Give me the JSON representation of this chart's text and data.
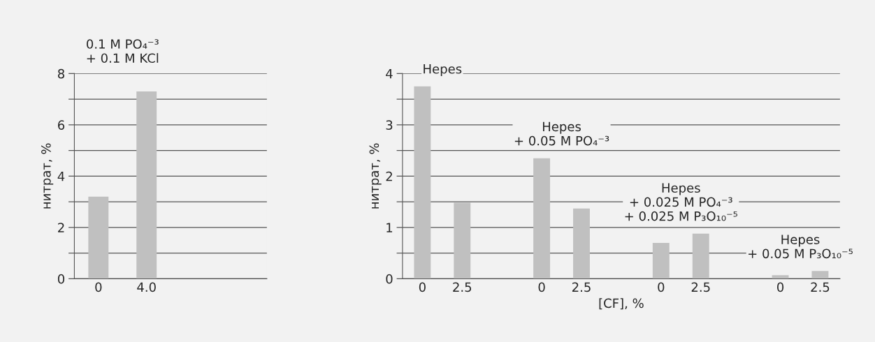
{
  "chart_data": [
    {
      "type": "bar",
      "ylabel": "нитрат, %",
      "categories": [
        "0",
        "4.0"
      ],
      "values": [
        3.2,
        7.3
      ],
      "color": "#c0c0c0",
      "ylim": [
        0,
        8
      ],
      "yticks": [
        0,
        {
          "value": 1,
          "label": null
        },
        2,
        {
          "value": 3,
          "label": null
        },
        4,
        {
          "value": 5,
          "label": null
        },
        6,
        {
          "value": 7,
          "label": null
        },
        8
      ],
      "grid": "y",
      "annotations": [
        "0.1 M PO₄⁻³\n+ 0.1 M KCl"
      ]
    },
    {
      "type": "bar",
      "ylabel": "нитрат, %",
      "xlabel": "[CF], %",
      "categories": [
        "0",
        "2.5",
        null,
        "0",
        "2.5",
        null,
        "0",
        "2.5",
        null,
        "0",
        "2.5"
      ],
      "values": [
        3.75,
        1.48,
        null,
        2.35,
        1.37,
        null,
        0.7,
        0.88,
        null,
        0.07,
        0.15
      ],
      "color": "#c0c0c0",
      "ylim": [
        0,
        4
      ],
      "yticks": [
        0,
        {
          "value": 0.5,
          "label": null
        },
        1,
        {
          "value": 1.5,
          "label": null
        },
        2,
        {
          "value": 2.5,
          "label": null
        },
        3,
        {
          "value": 3.5,
          "label": null
        },
        4
      ],
      "grid": "y",
      "annotations": [
        "Hepes",
        "Hepes\n+ 0.05 M PO₄⁻³",
        "Hepes\n+ 0.025 M PO₄⁻³\n+ 0.025 M P₃O₁₀⁻⁵",
        "Hepes\n+ 0.05 M P₃O₁₀⁻⁵"
      ]
    }
  ]
}
